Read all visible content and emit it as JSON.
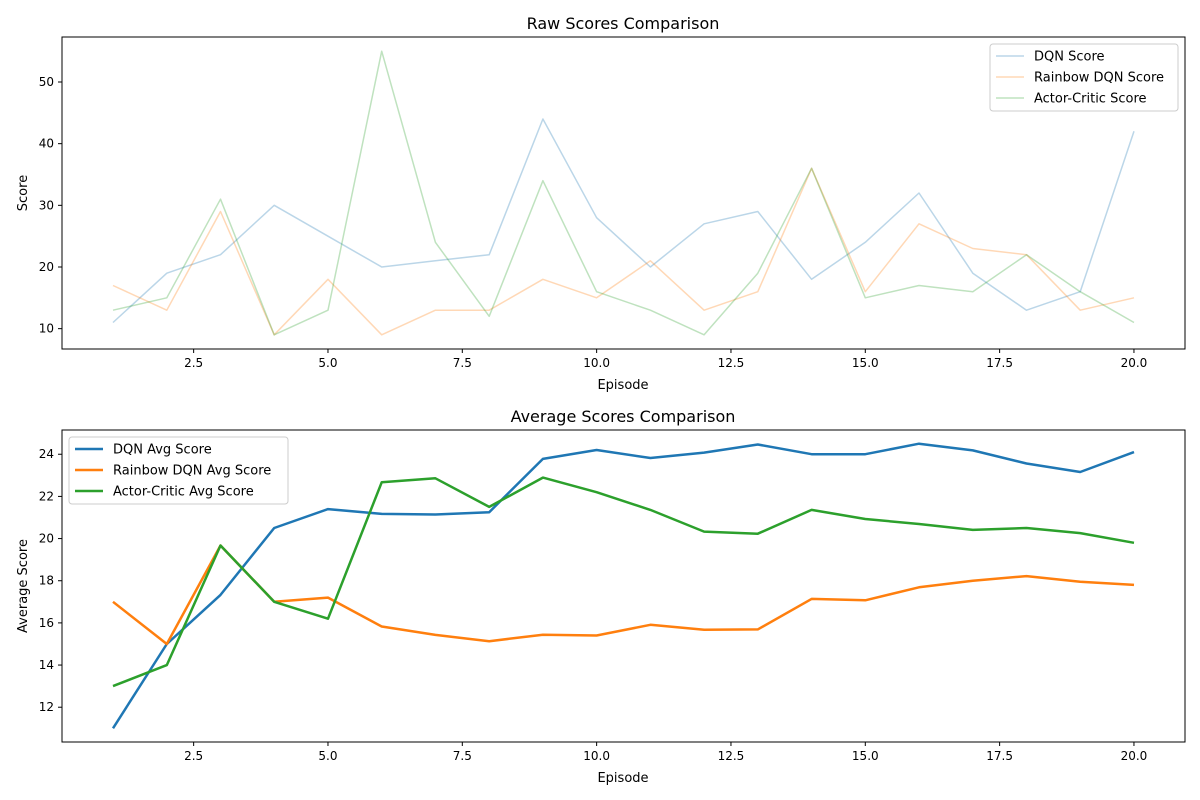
{
  "chart_data": [
    {
      "type": "line",
      "title": "Raw Scores Comparison",
      "xlabel": "Episode",
      "ylabel": "Score",
      "xlim": [
        0.05,
        20.95
      ],
      "ylim": [
        6.7,
        57.3
      ],
      "xticks": [
        2.5,
        5.0,
        7.5,
        10.0,
        12.5,
        15.0,
        17.5,
        20.0
      ],
      "xtick_labels": [
        "2.5",
        "5.0",
        "7.5",
        "10.0",
        "12.5",
        "15.0",
        "17.5",
        "20.0"
      ],
      "yticks": [
        10,
        20,
        30,
        40,
        50
      ],
      "ytick_labels": [
        "10",
        "20",
        "30",
        "40",
        "50"
      ],
      "legend_position": "top-right",
      "x": [
        1,
        2,
        3,
        4,
        5,
        6,
        7,
        8,
        9,
        10,
        11,
        12,
        13,
        14,
        15,
        16,
        17,
        18,
        19,
        20
      ],
      "series": [
        {
          "name": "DQN Score",
          "color": "#1f77b4",
          "opacity": 0.3,
          "values": [
            11,
            19,
            22,
            30,
            25,
            20,
            21,
            22,
            44,
            28,
            20,
            27,
            29,
            18,
            24,
            32,
            19,
            13,
            16,
            42
          ]
        },
        {
          "name": "Rainbow DQN Score",
          "color": "#ff7f0e",
          "opacity": 0.3,
          "values": [
            17,
            13,
            29,
            9,
            18,
            9,
            13,
            13,
            18,
            15,
            21,
            13,
            16,
            36,
            16,
            27,
            23,
            22,
            13,
            15
          ]
        },
        {
          "name": "Actor-Critic Score",
          "color": "#2ca02c",
          "opacity": 0.3,
          "values": [
            13,
            15,
            31,
            9,
            13,
            55,
            24,
            12,
            34,
            16,
            13,
            9,
            19,
            36,
            15,
            17,
            16,
            22,
            16,
            11
          ]
        }
      ]
    },
    {
      "type": "line",
      "title": "Average Scores Comparison",
      "xlabel": "Episode",
      "ylabel": "Average Score",
      "xlim": [
        0.05,
        20.95
      ],
      "ylim": [
        10.35,
        25.15
      ],
      "xticks": [
        2.5,
        5.0,
        7.5,
        10.0,
        12.5,
        15.0,
        17.5,
        20.0
      ],
      "xtick_labels": [
        "2.5",
        "5.0",
        "7.5",
        "10.0",
        "12.5",
        "15.0",
        "17.5",
        "20.0"
      ],
      "yticks": [
        12,
        14,
        16,
        18,
        20,
        22,
        24
      ],
      "ytick_labels": [
        "12",
        "14",
        "16",
        "18",
        "20",
        "22",
        "24"
      ],
      "legend_position": "top-left",
      "x": [
        1,
        2,
        3,
        4,
        5,
        6,
        7,
        8,
        9,
        10,
        11,
        12,
        13,
        14,
        15,
        16,
        17,
        18,
        19,
        20
      ],
      "series": [
        {
          "name": "DQN Avg Score",
          "color": "#1f77b4",
          "opacity": 1,
          "values": [
            11,
            15,
            17.33,
            20.5,
            21.4,
            21.17,
            21.14,
            21.25,
            23.78,
            24.2,
            23.82,
            24.08,
            24.46,
            24,
            24,
            24.5,
            24.18,
            23.56,
            23.16,
            24.1
          ]
        },
        {
          "name": "Rainbow DQN Avg Score",
          "color": "#ff7f0e",
          "opacity": 1,
          "values": [
            17,
            15,
            19.67,
            17,
            17.2,
            15.83,
            15.43,
            15.13,
            15.44,
            15.4,
            15.91,
            15.67,
            15.69,
            17.14,
            17.07,
            17.69,
            18,
            18.22,
            17.95,
            17.8
          ]
        },
        {
          "name": "Actor-Critic Avg Score",
          "color": "#2ca02c",
          "opacity": 1,
          "values": [
            13,
            14,
            19.67,
            17,
            16.2,
            22.67,
            22.86,
            21.5,
            22.89,
            22.2,
            21.36,
            20.33,
            20.23,
            21.36,
            20.93,
            20.69,
            20.41,
            20.5,
            20.26,
            19.8
          ]
        }
      ]
    }
  ]
}
